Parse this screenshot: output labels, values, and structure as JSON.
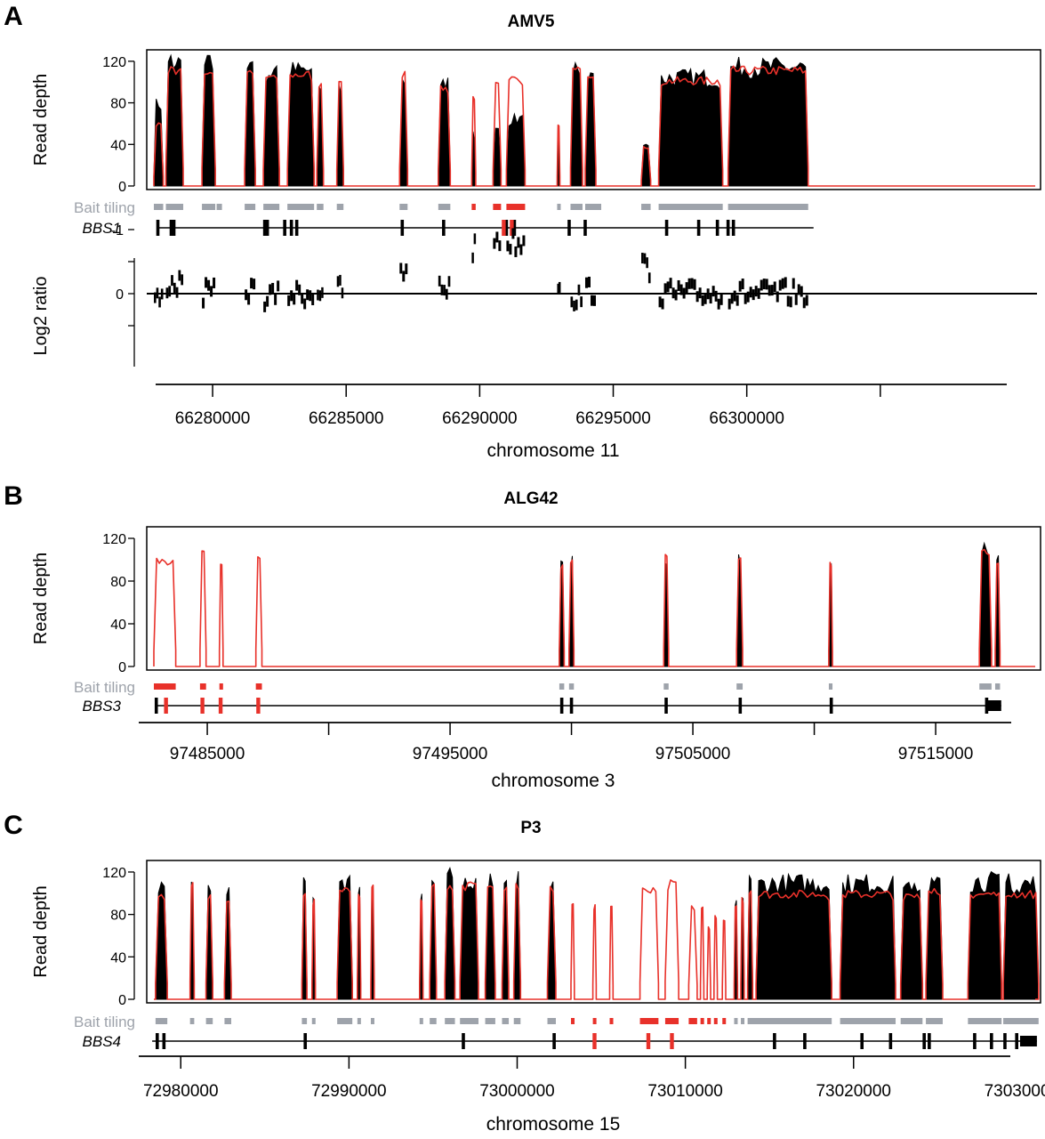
{
  "panels": [
    {
      "letter": "A",
      "title": "AMV5",
      "ylabel": "Read depth",
      "yticks": [
        "0",
        "40",
        "80",
        "120"
      ],
      "bait_label": "Bait tiling",
      "gene": "BBS1",
      "log2_label": "Log2 ratio",
      "log2_ticks": [
        "0",
        "-1"
      ],
      "xticks": [
        "66280000",
        "66285000",
        "66290000",
        "66295000",
        "66300000"
      ],
      "xlabel": "chromosome 11"
    },
    {
      "letter": "B",
      "title": "ALG42",
      "ylabel": "Read depth",
      "yticks": [
        "0",
        "40",
        "80",
        "120"
      ],
      "bait_label": "Bait tiling",
      "gene": "BBS3",
      "xticks": [
        "97485000",
        "97495000",
        "97505000",
        "97515000"
      ],
      "xlabel": "chromosome 3"
    },
    {
      "letter": "C",
      "title": "P3",
      "ylabel": "Read depth",
      "yticks": [
        "0",
        "40",
        "80",
        "120"
      ],
      "bait_label": "Bait tiling",
      "gene": "BBS4",
      "xticks": [
        "72980000",
        "72990000",
        "73000000",
        "73010000",
        "73020000",
        "73030000"
      ],
      "xlabel": "chromosome 15"
    }
  ],
  "colors": {
    "sample": "#000000",
    "control": "#e8312a",
    "bait": "#9ea3ab",
    "deleted": "#e8312a"
  },
  "chart_data": [
    {
      "type": "area",
      "title": "AMV5",
      "chromosome": "chromosome 11",
      "gene": "BBS1",
      "xlim": [
        66277800,
        66310800
      ],
      "ylim": [
        0,
        130
      ],
      "series_names": [
        "sample (black)",
        "control (red)"
      ],
      "regions": [
        {
          "x0": 66277800,
          "x1": 66278150,
          "sample": 80,
          "control": 60
        },
        {
          "x0": 66278250,
          "x1": 66278900,
          "sample": 120,
          "control": 112
        },
        {
          "x0": 66279600,
          "x1": 66280100,
          "sample": 118,
          "control": 112
        },
        {
          "x0": 66281200,
          "x1": 66281600,
          "sample": 115,
          "control": 112
        },
        {
          "x0": 66281900,
          "x1": 66282500,
          "sample": 110,
          "control": 108
        },
        {
          "x0": 66282800,
          "x1": 66283800,
          "sample": 112,
          "control": 108
        },
        {
          "x0": 66283900,
          "x1": 66284150,
          "sample": 100,
          "control": 100
        },
        {
          "x0": 66284650,
          "x1": 66284900,
          "sample": 98,
          "control": 100
        },
        {
          "x0": 66287000,
          "x1": 66287300,
          "sample": 110,
          "control": 112
        },
        {
          "x0": 66288450,
          "x1": 66288900,
          "sample": 100,
          "control": 96
        },
        {
          "x0": 66289700,
          "x1": 66289850,
          "sample": 50,
          "control": 85
        },
        {
          "x0": 66290500,
          "x1": 66290800,
          "sample": 60,
          "control": 100
        },
        {
          "x0": 66291000,
          "x1": 66291700,
          "sample": 65,
          "control": 102
        },
        {
          "x0": 66292900,
          "x1": 66293000,
          "sample": 60,
          "control": 60
        },
        {
          "x0": 66293400,
          "x1": 66293850,
          "sample": 115,
          "control": 112
        },
        {
          "x0": 66293950,
          "x1": 66294350,
          "sample": 110,
          "control": 108
        },
        {
          "x0": 66296050,
          "x1": 66296400,
          "sample": 40,
          "control": 38
        },
        {
          "x0": 66296700,
          "x1": 66299100,
          "sample": 105,
          "control": 102
        },
        {
          "x0": 66299300,
          "x1": 66302300,
          "sample": 115,
          "control": 112
        }
      ],
      "bait_tiling": [
        [
          66277800,
          66278150
        ],
        [
          66278250,
          66278900
        ],
        [
          66279600,
          66280100
        ],
        [
          66280150,
          66280350
        ],
        [
          66281200,
          66281600
        ],
        [
          66281900,
          66282500
        ],
        [
          66282800,
          66283800
        ],
        [
          66283900,
          66284150
        ],
        [
          66284650,
          66284900
        ],
        [
          66287000,
          66287300
        ],
        [
          66288450,
          66288900
        ],
        [
          66289700,
          66289850
        ],
        [
          66290500,
          66290800
        ],
        [
          66291000,
          66291700
        ],
        [
          66292900,
          66293000
        ],
        [
          66293400,
          66293850
        ],
        [
          66293950,
          66294550
        ],
        [
          66296050,
          66296400
        ],
        [
          66296700,
          66299100
        ],
        [
          66299300,
          66302300
        ]
      ],
      "deleted_baits": [
        [
          66289700,
          66289850
        ],
        [
          66290500,
          66290800
        ],
        [
          66291000,
          66291700
        ]
      ],
      "exons": [
        66277950,
        66278450,
        66278550,
        66281950,
        66282050,
        66282700,
        66282950,
        66283150,
        66287100,
        66288650,
        66291000,
        66291300,
        66293350,
        66293950,
        66297000,
        66298200,
        66298900,
        66299300,
        66299500
      ],
      "exons_deleted": [
        66290900,
        66291200
      ],
      "gene_range": [
        66277950,
        66302500
      ],
      "log2_ratio": {
        "ylim": [
          -1.3,
          0.7
        ],
        "segments": [
          {
            "x0": 66277800,
            "x1": 66278150,
            "y": 0.1
          },
          {
            "x0": 66278250,
            "x1": 66278900,
            "y": -0.15
          },
          {
            "x0": 66279600,
            "x1": 66280100,
            "y": 0.0
          },
          {
            "x0": 66281200,
            "x1": 66281600,
            "y": -0.05
          },
          {
            "x0": 66281900,
            "x1": 66282500,
            "y": 0.05
          },
          {
            "x0": 66282800,
            "x1": 66283800,
            "y": 0.0
          },
          {
            "x0": 66283900,
            "x1": 66284150,
            "y": -0.05
          },
          {
            "x0": 66284650,
            "x1": 66284900,
            "y": -0.05
          },
          {
            "x0": 66287000,
            "x1": 66287300,
            "y": -0.3
          },
          {
            "x0": 66288450,
            "x1": 66288900,
            "y": -0.1
          },
          {
            "x0": 66289700,
            "x1": 66289850,
            "y": -0.7
          },
          {
            "x0": 66290500,
            "x1": 66290800,
            "y": -0.85
          },
          {
            "x0": 66291000,
            "x1": 66291700,
            "y": -0.8
          },
          {
            "x0": 66292900,
            "x1": 66293000,
            "y": -0.2
          },
          {
            "x0": 66293400,
            "x1": 66293850,
            "y": 0.05
          },
          {
            "x0": 66293950,
            "x1": 66294350,
            "y": -0.05
          },
          {
            "x0": 66296050,
            "x1": 66296400,
            "y": -0.4
          },
          {
            "x0": 66296700,
            "x1": 66299100,
            "y": 0.0
          },
          {
            "x0": 66299300,
            "x1": 66302300,
            "y": 0.0
          }
        ]
      }
    },
    {
      "type": "area",
      "title": "ALG42",
      "chromosome": "chromosome 3",
      "gene": "BBS3",
      "xlim": [
        97482800,
        97519100
      ],
      "ylim": [
        0,
        130
      ],
      "series_names": [
        "sample (black)",
        "control (red)"
      ],
      "regions": [
        {
          "x0": 97482800,
          "x1": 97483700,
          "sample": 0,
          "control": 100
        },
        {
          "x0": 97484700,
          "x1": 97484950,
          "sample": 0,
          "control": 108
        },
        {
          "x0": 97485500,
          "x1": 97485650,
          "sample": 0,
          "control": 100
        },
        {
          "x0": 97487000,
          "x1": 97487250,
          "sample": 0,
          "control": 104
        },
        {
          "x0": 97499500,
          "x1": 97499700,
          "sample": 96,
          "control": 96
        },
        {
          "x0": 97499900,
          "x1": 97500100,
          "sample": 100,
          "control": 100
        },
        {
          "x0": 97503800,
          "x1": 97504000,
          "sample": 104,
          "control": 105
        },
        {
          "x0": 97506800,
          "x1": 97507050,
          "sample": 102,
          "control": 104
        },
        {
          "x0": 97510600,
          "x1": 97510750,
          "sample": 98,
          "control": 98
        },
        {
          "x0": 97516800,
          "x1": 97517300,
          "sample": 108,
          "control": 110
        },
        {
          "x0": 97517450,
          "x1": 97517650,
          "sample": 100,
          "control": 100
        }
      ],
      "bait_tiling": [
        [
          97482800,
          97483700
        ],
        [
          97484700,
          97484950
        ],
        [
          97485500,
          97485650
        ],
        [
          97487000,
          97487250
        ],
        [
          97499500,
          97499700
        ],
        [
          97499900,
          97500100
        ],
        [
          97503800,
          97504000
        ],
        [
          97506800,
          97507050
        ],
        [
          97510600,
          97510750
        ],
        [
          97516800,
          97517300
        ],
        [
          97517450,
          97517650
        ]
      ],
      "deleted_baits": [
        [
          97482800,
          97483700
        ],
        [
          97484700,
          97484950
        ],
        [
          97485500,
          97485650
        ],
        [
          97487000,
          97487250
        ]
      ],
      "exons": [
        97482900,
        97499600,
        97500000,
        97503900,
        97506950,
        97510700,
        97517100
      ],
      "exons_deleted": [
        97483300,
        97484800,
        97485550,
        97487100
      ],
      "gene_range": [
        97482900,
        97517700
      ],
      "gene_end_block": [
        97517100,
        97517700
      ]
    },
    {
      "type": "area",
      "title": "P3",
      "chromosome": "chromosome 15",
      "gene": "BBS4",
      "xlim": [
        72978400,
        73030800
      ],
      "ylim": [
        0,
        130
      ],
      "series_names": [
        "sample (black)",
        "control (red)"
      ],
      "regions": [
        {
          "x0": 72978500,
          "x1": 72979200,
          "sample": 112,
          "control": 100
        },
        {
          "x0": 72980550,
          "x1": 72980800,
          "sample": 118,
          "control": 112
        },
        {
          "x0": 72981500,
          "x1": 72981900,
          "sample": 105,
          "control": 100
        },
        {
          "x0": 72982600,
          "x1": 72983000,
          "sample": 100,
          "control": 98
        },
        {
          "x0": 72987200,
          "x1": 72987500,
          "sample": 110,
          "control": 100
        },
        {
          "x0": 72987800,
          "x1": 72988000,
          "sample": 95,
          "control": 95
        },
        {
          "x0": 72989300,
          "x1": 72990200,
          "sample": 110,
          "control": 105
        },
        {
          "x0": 72990500,
          "x1": 72990700,
          "sample": 100,
          "control": 98
        },
        {
          "x0": 72991300,
          "x1": 72991500,
          "sample": 112,
          "control": 108
        },
        {
          "x0": 72994200,
          "x1": 72994400,
          "sample": 100,
          "control": 98
        },
        {
          "x0": 72994800,
          "x1": 72995200,
          "sample": 112,
          "control": 108
        },
        {
          "x0": 72995700,
          "x1": 72996300,
          "sample": 115,
          "control": 110
        },
        {
          "x0": 72996600,
          "x1": 72997700,
          "sample": 112,
          "control": 108
        },
        {
          "x0": 72998100,
          "x1": 72998700,
          "sample": 110,
          "control": 106
        },
        {
          "x0": 72999100,
          "x1": 72999500,
          "sample": 110,
          "control": 106
        },
        {
          "x0": 72999800,
          "x1": 73000200,
          "sample": 115,
          "control": 110
        },
        {
          "x0": 73001800,
          "x1": 73002300,
          "sample": 110,
          "control": 105
        },
        {
          "x0": 73003200,
          "x1": 73003400,
          "sample": 0,
          "control": 95
        },
        {
          "x0": 73004500,
          "x1": 73004700,
          "sample": 0,
          "control": 88
        },
        {
          "x0": 73005500,
          "x1": 73005700,
          "sample": 0,
          "control": 90
        },
        {
          "x0": 73007300,
          "x1": 73008400,
          "sample": 0,
          "control": 105
        },
        {
          "x0": 73008800,
          "x1": 73009600,
          "sample": 0,
          "control": 110
        },
        {
          "x0": 73010200,
          "x1": 73010700,
          "sample": 0,
          "control": 88
        },
        {
          "x0": 73010900,
          "x1": 73011100,
          "sample": 0,
          "control": 92
        },
        {
          "x0": 73011300,
          "x1": 73011500,
          "sample": 0,
          "control": 70
        },
        {
          "x0": 73011700,
          "x1": 73011900,
          "sample": 0,
          "control": 80
        },
        {
          "x0": 73012200,
          "x1": 73012400,
          "sample": 0,
          "control": 75
        },
        {
          "x0": 73012900,
          "x1": 73013100,
          "sample": 95,
          "control": 90
        },
        {
          "x0": 73013300,
          "x1": 73013500,
          "sample": 100,
          "control": 95
        },
        {
          "x0": 73013700,
          "x1": 73014000,
          "sample": 115,
          "control": 105
        },
        {
          "x0": 73014200,
          "x1": 73018700,
          "sample": 110,
          "control": 100
        },
        {
          "x0": 73019200,
          "x1": 73022500,
          "sample": 110,
          "control": 100
        },
        {
          "x0": 73022800,
          "x1": 73024100,
          "sample": 105,
          "control": 100
        },
        {
          "x0": 73024300,
          "x1": 73025300,
          "sample": 110,
          "control": 102
        },
        {
          "x0": 73026800,
          "x1": 73028800,
          "sample": 112,
          "control": 100
        },
        {
          "x0": 73028900,
          "x1": 73031000,
          "sample": 110,
          "control": 100
        }
      ],
      "bait_tiling": [
        [
          72978500,
          72979200
        ],
        [
          72980550,
          72980800
        ],
        [
          72981500,
          72981900
        ],
        [
          72982600,
          72983000
        ],
        [
          72987200,
          72987500
        ],
        [
          72987800,
          72988000
        ],
        [
          72989300,
          72990200
        ],
        [
          72990500,
          72990700
        ],
        [
          72991300,
          72991500
        ],
        [
          72994200,
          72994400
        ],
        [
          72994800,
          72995200
        ],
        [
          72995700,
          72996300
        ],
        [
          72996600,
          72997700
        ],
        [
          72998100,
          72998700
        ],
        [
          72999100,
          72999500
        ],
        [
          72999800,
          73000200
        ],
        [
          73001800,
          73002300
        ],
        [
          73003200,
          73003400
        ],
        [
          73004500,
          73004700
        ],
        [
          73005500,
          73005700
        ],
        [
          73007300,
          73008400
        ],
        [
          73008800,
          73009600
        ],
        [
          73010200,
          73010700
        ],
        [
          73010900,
          73011100
        ],
        [
          73011300,
          73011500
        ],
        [
          73011700,
          73011900
        ],
        [
          73012200,
          73012400
        ],
        [
          73012900,
          73013100
        ],
        [
          73013300,
          73013500
        ],
        [
          73013700,
          73018700
        ],
        [
          73019200,
          73022500
        ],
        [
          73022800,
          73024100
        ],
        [
          73024300,
          73025300
        ],
        [
          73026800,
          73028800
        ],
        [
          73028900,
          73031000
        ]
      ],
      "deleted_baits": [
        [
          73003200,
          73003400
        ],
        [
          73004500,
          73004700
        ],
        [
          73005500,
          73005700
        ],
        [
          73007300,
          73008400
        ],
        [
          73008800,
          73009600
        ],
        [
          73010200,
          73010700
        ],
        [
          73010900,
          73011100
        ],
        [
          73011300,
          73011500
        ],
        [
          73011700,
          73011900
        ],
        [
          73012200,
          73012400
        ]
      ],
      "exons": [
        72978600,
        72979000,
        72987400,
        72996800,
        73002200,
        73015300,
        73017100,
        73020500,
        73022200,
        73024200,
        73024500,
        73027200,
        73028200,
        73029000,
        73029700
      ],
      "exons_deleted": [
        73004600,
        73007800,
        73009200
      ],
      "gene_range": [
        72978300,
        73030900
      ],
      "gene_end_block": [
        73029900,
        73030900
      ]
    }
  ]
}
